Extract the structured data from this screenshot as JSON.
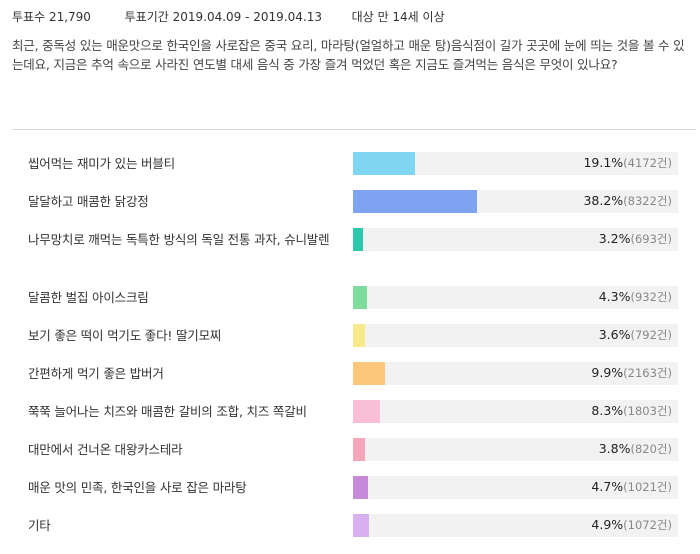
{
  "meta": {
    "votes_label": "투표수",
    "votes_value": "21,790",
    "period_label": "투표기간",
    "period_value": "2019.04.09 - 2019.04.13",
    "target_label": "대상",
    "target_value": "만 14세 이상"
  },
  "question": "최근, 중독성 있는 매운맛으로 한국인을 사로잡은 중국 요리, 마라탕(얼얼하고 매운 탕)음식점이 길가 곳곳에 눈에 띄는 것을 볼 수 있는데요, 지금은 추억 속으로 사라진 연도별 대세 음식 중 가장 즐겨 먹었던 혹은 지금도 즐겨먹는 음식은 무엇이 있나요?",
  "options": [
    {
      "label": "씹어먹는 재미가 있는 버블티",
      "percent": 19.1,
      "percent_text": "19.1%",
      "count_text": "(4172건)",
      "color": "#7fd6f0"
    },
    {
      "label": "달달하고 매콤한 닭강정",
      "percent": 38.2,
      "percent_text": "38.2%",
      "count_text": "(8322건)",
      "color": "#7ea3f2"
    },
    {
      "label": "나무망치로 깨먹는 독특한 방식의 독일 전통 과자, 슈니발렌",
      "percent": 3.2,
      "percent_text": "3.2%",
      "count_text": "(693건)",
      "color": "#2ec9ad"
    },
    {
      "label": "달콤한 벌집 아이스크림",
      "percent": 4.3,
      "percent_text": "4.3%",
      "count_text": "(932건)",
      "color": "#7edc9c"
    },
    {
      "label": "보기 좋은 떡이 먹기도 좋다! 딸기모찌",
      "percent": 3.6,
      "percent_text": "3.6%",
      "count_text": "(792건)",
      "color": "#f8ea8c"
    },
    {
      "label": "간편하게 먹기 좋은 밥버거",
      "percent": 9.9,
      "percent_text": "9.9%",
      "count_text": "(2163건)",
      "color": "#fcc77a"
    },
    {
      "label": "쭉쭉 늘어나는 치즈와 매콤한 갈비의 조합, 치즈 쪽갈비",
      "percent": 8.3,
      "percent_text": "8.3%",
      "count_text": "(1803건)",
      "color": "#f9bfd6"
    },
    {
      "label": "대만에서 건너온 대왕카스테라",
      "percent": 3.8,
      "percent_text": "3.8%",
      "count_text": "(820건)",
      "color": "#f5a6b8"
    },
    {
      "label": "매운 맛의 민족, 한국인을 사로 잡은 마라탕",
      "percent": 4.7,
      "percent_text": "4.7%",
      "count_text": "(1021건)",
      "color": "#c58ad8"
    },
    {
      "label": "기타",
      "percent": 4.9,
      "percent_text": "4.9%",
      "count_text": "(1072건)",
      "color": "#d8b0f0"
    }
  ]
}
